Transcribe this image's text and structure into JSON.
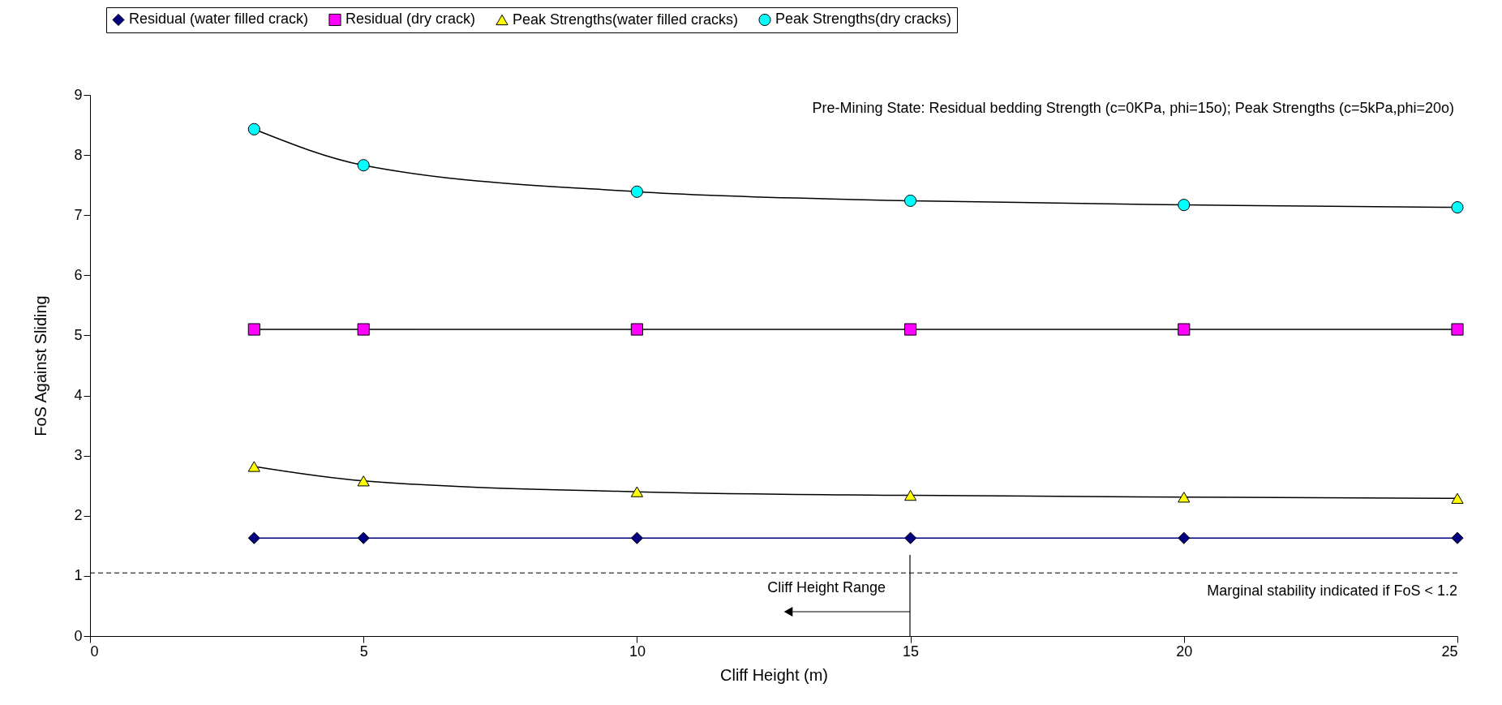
{
  "chart_data": {
    "type": "line",
    "xlabel": "Cliff Height (m)",
    "ylabel": "FoS Against Sliding",
    "x": [
      3,
      5,
      10,
      15,
      20,
      25
    ],
    "series": [
      {
        "name": "Residual (water filled crack)",
        "color": "#000080",
        "marker": "diamond",
        "values": [
          1.63,
          1.63,
          1.63,
          1.63,
          1.63,
          1.63
        ]
      },
      {
        "name": "Residual (dry crack)",
        "color": "#ff00ff",
        "marker": "square",
        "values": [
          5.1,
          5.1,
          5.1,
          5.1,
          5.1,
          5.1
        ]
      },
      {
        "name": "Peak Strengths(water filled cracks)",
        "color": "#ffff00",
        "marker": "triangle",
        "values": [
          2.82,
          2.58,
          2.4,
          2.34,
          2.31,
          2.29
        ]
      },
      {
        "name": "Peak Strengths(dry cracks)",
        "color": "#00ffff",
        "marker": "circle",
        "values": [
          8.43,
          7.83,
          7.39,
          7.24,
          7.17,
          7.13
        ]
      }
    ],
    "xlim": [
      0,
      25
    ],
    "xticks": [
      0,
      5,
      10,
      15,
      20,
      25
    ],
    "ylim": [
      0,
      9
    ],
    "yticks": [
      0,
      1,
      2,
      3,
      4,
      5,
      6,
      7,
      8,
      9
    ],
    "grid": false,
    "legend": "top",
    "ref_lines": [
      {
        "axis": "y",
        "value": 1.05,
        "label": "Marginal stability indicated if FoS < 1.2",
        "line_style": "dashed"
      }
    ],
    "annotations": [
      "Pre-Mining State: Residual bedding Strength (c=0KPa, phi=15o); Peak Strengths (c=5kPa,phi=20o)",
      "Cliff Height Range"
    ]
  }
}
